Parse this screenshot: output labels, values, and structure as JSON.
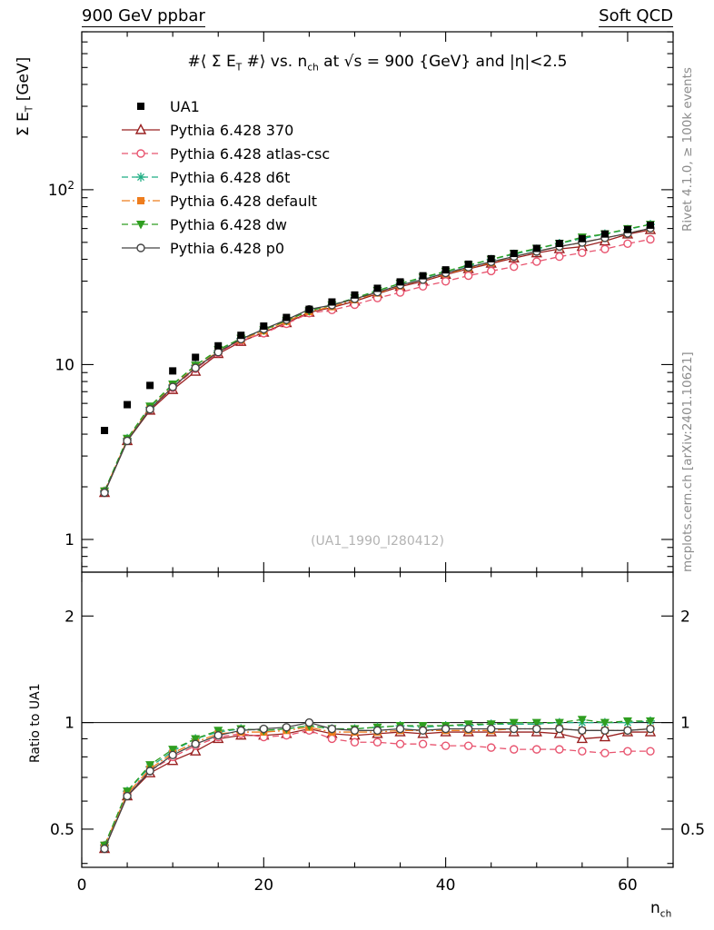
{
  "header": {
    "left": "900 GeV ppbar",
    "right": "Soft QCD"
  },
  "title": {
    "pre": "#⟨ Σ E",
    "sub1": "T",
    "mid": " #⟩ vs. n",
    "sub2": "ch",
    "post": " at √s = 900 {GeV} and |η|<2.5"
  },
  "watermark": "(UA1_1990_I280412)",
  "side_notes": {
    "top": "Rivet 4.1.0, ≥ 100k events",
    "bottom": "mcplots.cern.ch [arXiv:2401.10621]"
  },
  "axes": {
    "y_main_label": {
      "pre": "Σ E",
      "sub": "T",
      "post": " [GeV]"
    },
    "y_ratio_label": "Ratio to UA1",
    "x_label": {
      "pre": "n",
      "sub": "ch"
    }
  },
  "chart_data": {
    "type": "line",
    "title": "#⟨ Σ E_T #⟩ vs. n_ch at √s = 900 {GeV} and |η|<2.5",
    "x": [
      2.5,
      5,
      7.5,
      10,
      12.5,
      15,
      17.5,
      20,
      22.5,
      25,
      27.5,
      30,
      32.5,
      35,
      37.5,
      40,
      42.5,
      45,
      47.5,
      50,
      52.5,
      55,
      57.5,
      60,
      62.5
    ],
    "x_axis": {
      "label": "n_ch",
      "range": [
        0,
        65
      ],
      "major_ticks": [
        0,
        20,
        40,
        60
      ],
      "minor_tick_step": 5
    },
    "y_main_axis": {
      "label": "Sum E_T [GeV]",
      "scale": "log",
      "range": [
        0.65,
        800
      ],
      "labeled_ticks": [
        1,
        10,
        100
      ]
    },
    "y_ratio_axis": {
      "label": "Ratio to UA1",
      "scale": "log",
      "range": [
        0.39,
        2.66
      ],
      "labeled_ticks": [
        0.5,
        1,
        2
      ]
    },
    "ratio_reference_line": 1,
    "reference_series": {
      "name": "UA1",
      "color": "#000000",
      "marker": "filled-square",
      "values": [
        4.2,
        5.9,
        7.6,
        9.2,
        11.0,
        12.8,
        14.7,
        16.6,
        18.6,
        20.7,
        22.8,
        25.0,
        27.3,
        29.7,
        32.2,
        34.8,
        37.5,
        40.3,
        43.2,
        46.2,
        49.3,
        52.5,
        55.8,
        59.2,
        62.7
      ]
    },
    "series": [
      {
        "name": "Pythia 6.428 370",
        "color": "#992020",
        "marker": "open-triangle-up",
        "line": "solid",
        "values": [
          1.85,
          3.66,
          5.47,
          7.18,
          9.13,
          11.52,
          13.52,
          15.27,
          17.3,
          19.87,
          21.2,
          23.0,
          25.39,
          27.92,
          29.95,
          32.71,
          35.25,
          37.88,
          40.61,
          43.43,
          45.85,
          47.25,
          50.78,
          55.65,
          58.94
        ],
        "ratio": [
          0.44,
          0.62,
          0.72,
          0.78,
          0.83,
          0.9,
          0.92,
          0.92,
          0.93,
          0.96,
          0.93,
          0.92,
          0.93,
          0.94,
          0.93,
          0.94,
          0.94,
          0.94,
          0.94,
          0.94,
          0.93,
          0.9,
          0.91,
          0.94,
          0.94
        ]
      },
      {
        "name": "Pythia 6.428 atlas-csc",
        "color": "#e8546f",
        "marker": "open-circle",
        "line": "dashed",
        "values": [
          1.89,
          3.72,
          5.55,
          7.36,
          9.46,
          11.65,
          13.67,
          15.11,
          17.11,
          19.67,
          20.52,
          22.0,
          24.02,
          25.84,
          28.01,
          29.93,
          32.25,
          34.26,
          36.29,
          38.81,
          41.41,
          43.58,
          45.76,
          49.14,
          52.04
        ],
        "ratio": [
          0.45,
          0.63,
          0.73,
          0.8,
          0.86,
          0.91,
          0.93,
          0.91,
          0.92,
          0.95,
          0.9,
          0.88,
          0.88,
          0.87,
          0.87,
          0.86,
          0.86,
          0.85,
          0.84,
          0.84,
          0.84,
          0.83,
          0.82,
          0.83,
          0.83
        ]
      },
      {
        "name": "Pythia 6.428 d6t",
        "color": "#1fae84",
        "marker": "asterisk",
        "line": "dashed",
        "values": [
          1.89,
          3.78,
          5.7,
          7.64,
          9.9,
          12.03,
          14.11,
          15.77,
          17.86,
          20.29,
          21.89,
          24.0,
          26.48,
          29.11,
          31.23,
          34.1,
          36.75,
          39.9,
          42.77,
          45.74,
          49.3,
          52.5,
          55.8,
          59.2,
          63.33
        ],
        "ratio": [
          0.45,
          0.64,
          0.75,
          0.83,
          0.9,
          0.94,
          0.96,
          0.95,
          0.96,
          0.98,
          0.96,
          0.96,
          0.97,
          0.98,
          0.97,
          0.98,
          0.98,
          0.99,
          0.99,
          0.99,
          1.0,
          1.0,
          1.0,
          1.0,
          1.01
        ]
      },
      {
        "name": "Pythia 6.428 default",
        "color": "#ee7d1e",
        "marker": "filled-square",
        "line": "dashdot",
        "values": [
          1.89,
          3.72,
          5.62,
          7.54,
          9.68,
          11.9,
          13.82,
          15.6,
          17.67,
          20.08,
          21.43,
          23.5,
          25.66,
          28.22,
          30.59,
          33.06,
          35.63,
          38.29,
          41.47,
          44.35,
          47.33,
          49.88,
          53.01,
          56.24,
          60.19
        ],
        "ratio": [
          0.45,
          0.63,
          0.74,
          0.82,
          0.88,
          0.93,
          0.94,
          0.94,
          0.95,
          0.97,
          0.94,
          0.94,
          0.94,
          0.95,
          0.95,
          0.95,
          0.95,
          0.95,
          0.96,
          0.96,
          0.96,
          0.95,
          0.95,
          0.95,
          0.96
        ]
      },
      {
        "name": "Pythia 6.428 dw",
        "color": "#2f9e20",
        "marker": "filled-triangle-down",
        "line": "dashed",
        "values": [
          1.89,
          3.78,
          5.78,
          7.73,
          9.9,
          12.16,
          14.11,
          15.77,
          17.86,
          20.29,
          21.89,
          24.0,
          26.48,
          29.11,
          31.56,
          34.1,
          37.13,
          39.9,
          43.2,
          46.2,
          49.3,
          53.55,
          55.8,
          59.79,
          63.33
        ],
        "ratio": [
          0.45,
          0.64,
          0.76,
          0.84,
          0.9,
          0.95,
          0.96,
          0.95,
          0.96,
          0.98,
          0.96,
          0.96,
          0.97,
          0.98,
          0.98,
          0.98,
          0.99,
          0.99,
          1.0,
          1.0,
          1.0,
          1.02,
          1.0,
          1.01,
          1.01
        ]
      },
      {
        "name": "Pythia 6.428 p0",
        "color": "#444444",
        "marker": "open-circle",
        "line": "solid",
        "values": [
          1.85,
          3.66,
          5.55,
          7.45,
          9.57,
          11.78,
          13.97,
          15.94,
          18.04,
          20.7,
          21.89,
          23.75,
          25.94,
          28.51,
          30.59,
          33.41,
          36.0,
          38.69,
          41.47,
          44.35,
          47.33,
          49.88,
          53.01,
          56.24,
          60.19
        ],
        "ratio": [
          0.44,
          0.62,
          0.73,
          0.81,
          0.87,
          0.92,
          0.95,
          0.96,
          0.97,
          1.0,
          0.96,
          0.95,
          0.95,
          0.96,
          0.95,
          0.96,
          0.96,
          0.96,
          0.96,
          0.96,
          0.96,
          0.95,
          0.95,
          0.95,
          0.96
        ]
      }
    ]
  }
}
